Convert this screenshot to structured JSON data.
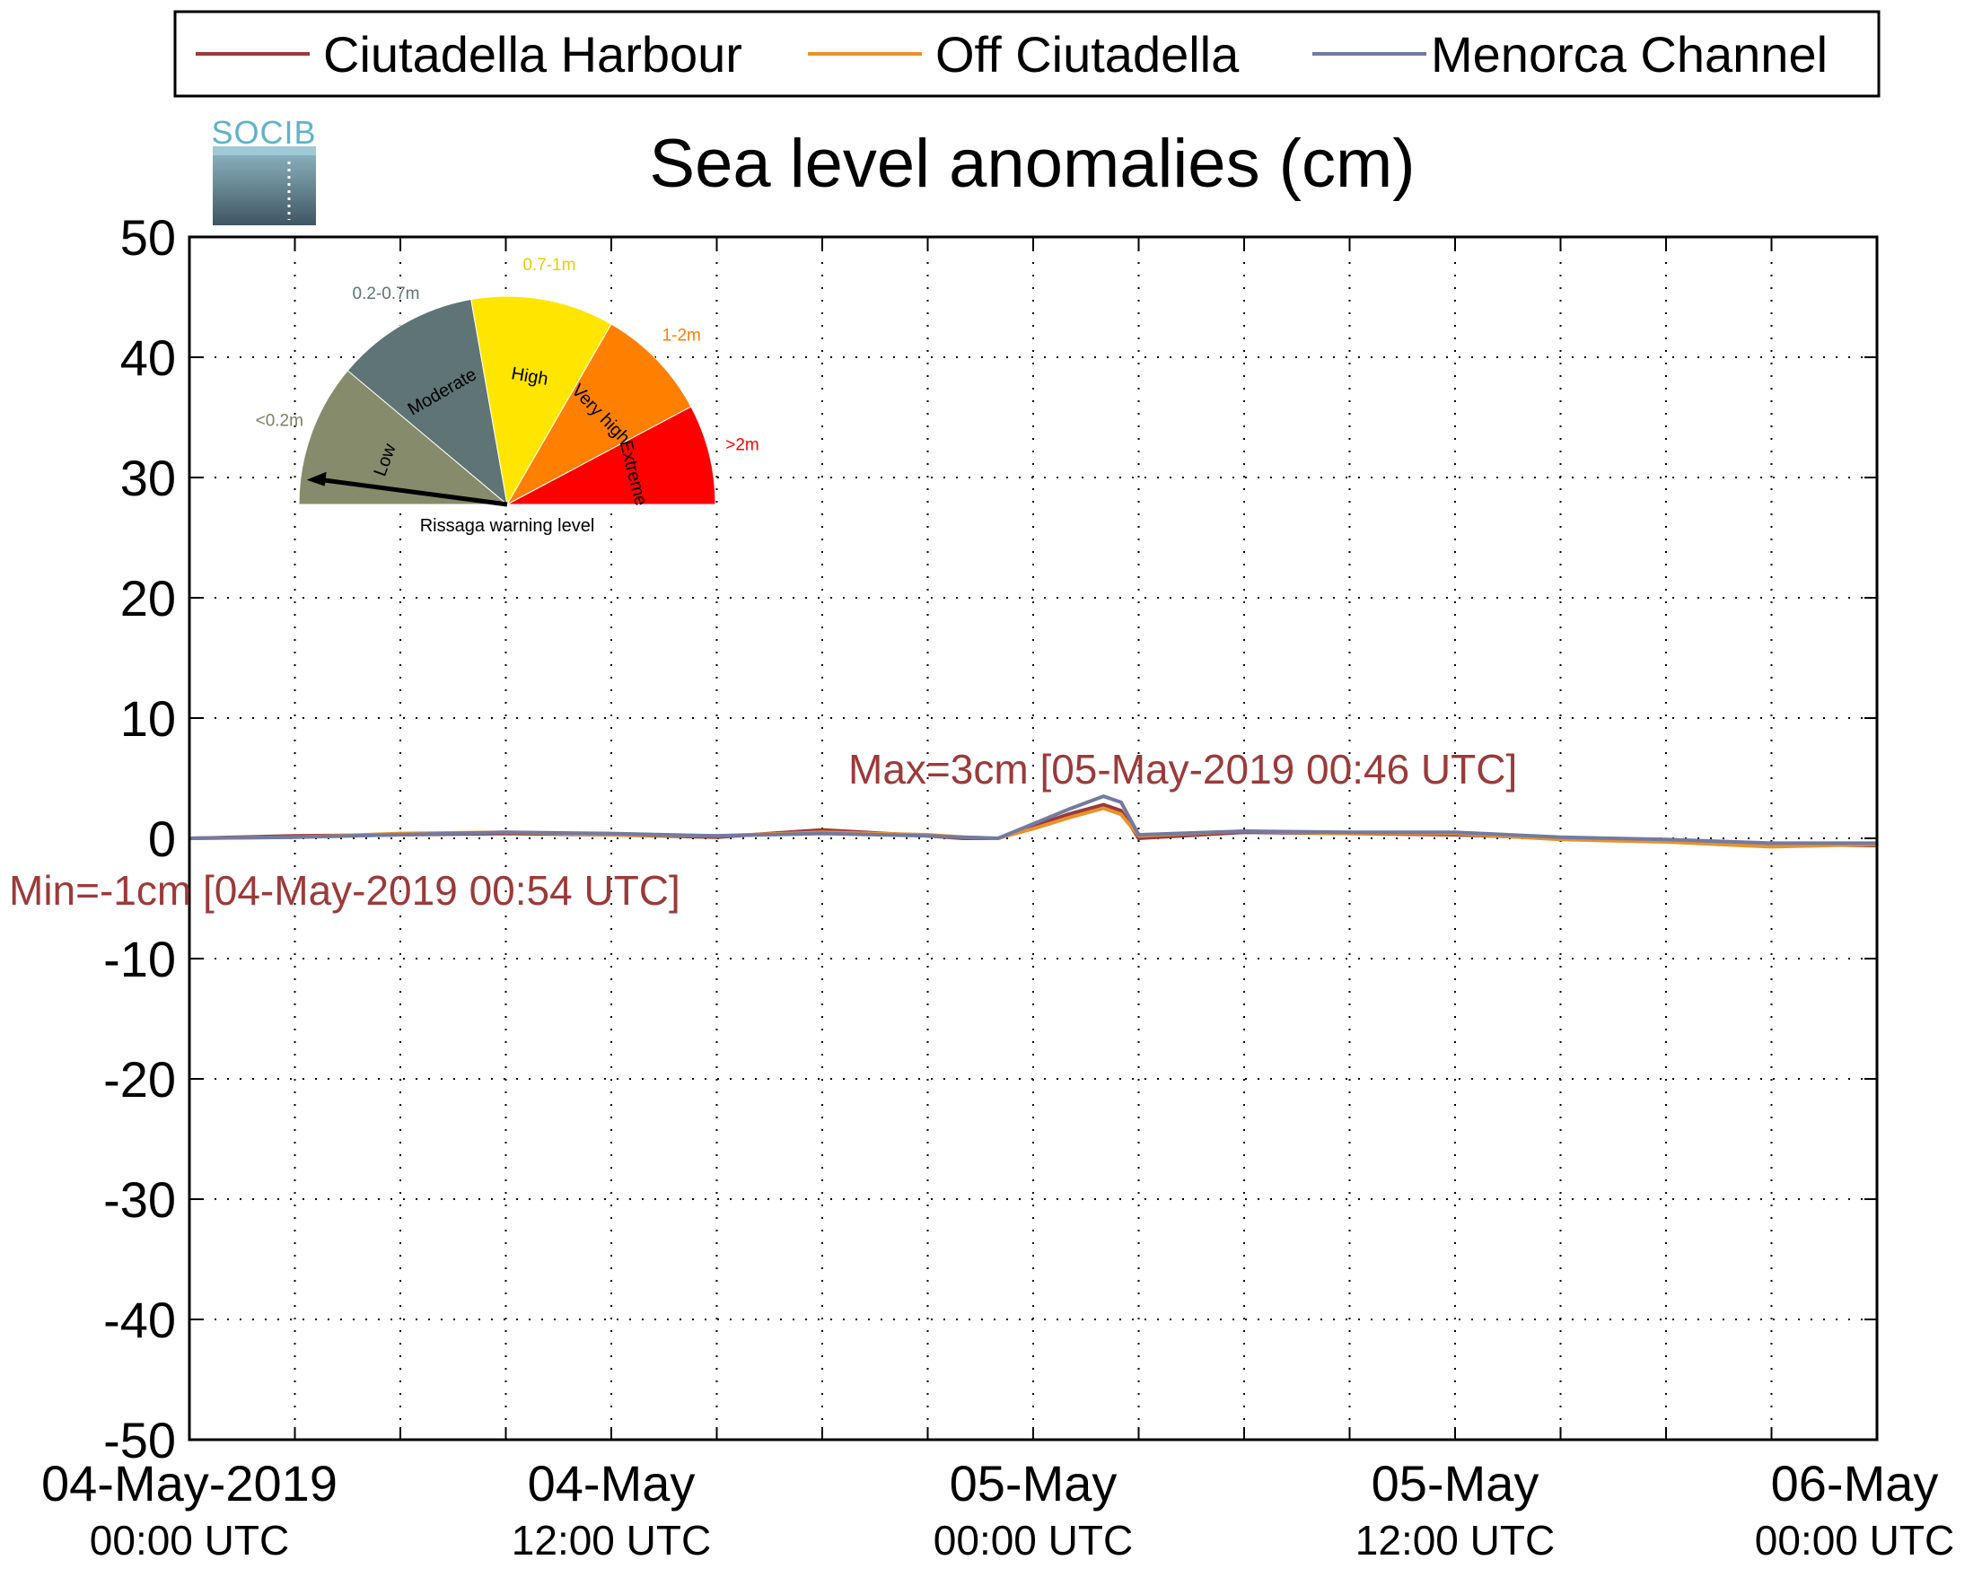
{
  "legend": {
    "items": [
      {
        "label": "Ciutadella Harbour",
        "color": "#9b3a3a"
      },
      {
        "label": "Off Ciutadella",
        "color": "#e8922a"
      },
      {
        "label": "Menorca Channel",
        "color": "#737aa1"
      }
    ]
  },
  "logo": {
    "text": "SOCIB"
  },
  "gauge": {
    "caption": "Rissaga warning level",
    "needle_level": "Low",
    "segments": [
      {
        "name": "Low",
        "range": "<0.2m",
        "color": "#868c6b",
        "range_color": "#7a8060"
      },
      {
        "name": "Moderate",
        "range": "0.2-0.7m",
        "color": "#5e7475",
        "range_color": "#5e7475"
      },
      {
        "name": "High",
        "range": "0.7-1m",
        "color": "#ffe600",
        "range_color": "#e6cf00"
      },
      {
        "name": "Very high",
        "range": "1-2m",
        "color": "#ff7f00",
        "range_color": "#ff7f00"
      },
      {
        "name": "Extreme",
        "range": ">2m",
        "color": "#ff0000",
        "range_color": "#ff0000"
      }
    ]
  },
  "chart_data": {
    "type": "line",
    "title": "Sea level anomalies (cm)",
    "xlabel": "",
    "ylabel": "",
    "ylim": [
      -50,
      50
    ],
    "yticks": [
      -50,
      -40,
      -30,
      -20,
      -10,
      0,
      10,
      20,
      30,
      40,
      50
    ],
    "xlim": [
      "2019-05-04 00:00",
      "2019-05-06 00:00"
    ],
    "grid": true,
    "legend_position": "top",
    "xtick_labels": [
      {
        "line1": "04-May-2019",
        "line2": "00:00 UTC"
      },
      {
        "line1": "04-May",
        "line2": "12:00 UTC"
      },
      {
        "line1": "05-May",
        "line2": "00:00 UTC"
      },
      {
        "line1": "05-May",
        "line2": "12:00 UTC"
      },
      {
        "line1": "06-May",
        "line2": "00:00 UTC"
      }
    ],
    "annotations": {
      "max": "Max=3cm [05-May-2019 00:46 UTC]",
      "min": "Min=-1cm [04-May-2019 00:54 UTC]"
    },
    "x_time_hours": [
      0,
      3,
      6,
      9,
      12,
      15,
      18,
      21,
      22,
      23,
      24,
      25,
      26,
      26.5,
      27,
      30,
      33,
      36,
      39,
      42,
      45,
      48
    ],
    "series": [
      {
        "name": "Ciutadella Harbour",
        "color": "#9b3a3a",
        "values": [
          0,
          0.2,
          0.3,
          0.4,
          0.3,
          0.1,
          0.7,
          0.2,
          0.0,
          0.0,
          1.0,
          2.0,
          2.8,
          2.3,
          0.0,
          0.5,
          0.4,
          0.3,
          0.0,
          -0.2,
          -0.5,
          -0.6
        ]
      },
      {
        "name": "Off Ciutadella",
        "color": "#e8922a",
        "values": [
          0,
          0.1,
          0.4,
          0.5,
          0.3,
          0.2,
          0.5,
          0.3,
          0.1,
          0.0,
          0.8,
          1.7,
          2.5,
          2.0,
          0.2,
          0.6,
          0.4,
          0.4,
          -0.1,
          -0.3,
          -0.7,
          -0.5
        ]
      },
      {
        "name": "Menorca Channel",
        "color": "#737aa1",
        "values": [
          0,
          0.1,
          0.3,
          0.5,
          0.4,
          0.2,
          0.4,
          0.2,
          0.1,
          0.0,
          1.2,
          2.4,
          3.5,
          3.0,
          0.3,
          0.6,
          0.5,
          0.5,
          0.1,
          -0.1,
          -0.4,
          -0.4
        ]
      }
    ]
  }
}
